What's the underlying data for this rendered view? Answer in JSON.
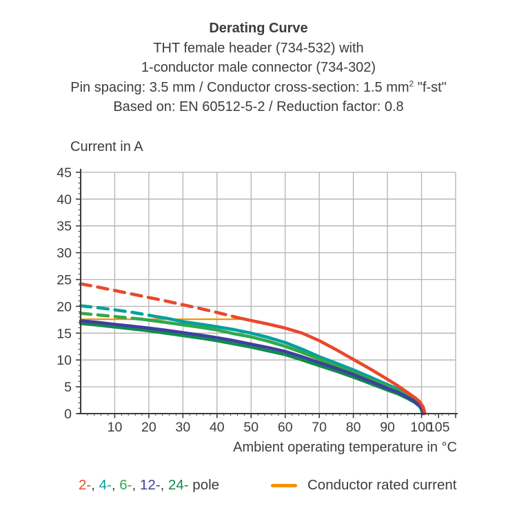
{
  "title": {
    "line1": "Derating Curve",
    "line2": "THT female header (734-532) with",
    "line3": "1-conductor male connector (734-302)",
    "line4_pre": "Pin spacing: 3.5 mm / Conductor cross-section: 1.5 mm",
    "line4_sup": "2",
    "line4_post": " \"f-st\"",
    "line5": "Based on: EN 60512-5-2 / Reduction factor: 0.8"
  },
  "chart_data": {
    "type": "line",
    "title": "Derating Curve",
    "xlabel": "Ambient operating temperature in °C",
    "ylabel": "Current in A",
    "xlim": [
      0,
      110
    ],
    "ylim": [
      0,
      45
    ],
    "grid": true,
    "x_tick_labels": [
      10,
      20,
      30,
      40,
      50,
      60,
      70,
      80,
      90,
      100,
      105
    ],
    "x_major_ticks": [
      10,
      20,
      30,
      40,
      50,
      60,
      70,
      80,
      90,
      100,
      105,
      110
    ],
    "x_minor_step": 2,
    "y_major_ticks": [
      0,
      5,
      10,
      15,
      20,
      25,
      30,
      35,
      40,
      45
    ],
    "y_minor_step": 1,
    "grid_color": "#b2b2b2",
    "axis_color": "#3c3c3b",
    "series": [
      {
        "name": "Conductor rated current",
        "color": "#f39200",
        "width": 2.2,
        "solid_points": [
          [
            0,
            17.6
          ],
          [
            46.5,
            17.6
          ]
        ]
      },
      {
        "name": "4-pole",
        "color": "#00a19d",
        "width": 4.6,
        "dashed_points": [
          [
            0,
            20.1
          ],
          [
            5,
            19.75
          ],
          [
            10,
            19.35
          ],
          [
            15,
            18.9
          ],
          [
            20,
            18.35
          ],
          [
            22,
            18.1
          ]
        ],
        "solid_points": [
          [
            22,
            18.1
          ],
          [
            25,
            17.8
          ],
          [
            30,
            17.15
          ],
          [
            35,
            16.7
          ],
          [
            40,
            16.2
          ],
          [
            45,
            15.65
          ],
          [
            50,
            15.0
          ],
          [
            55,
            14.2
          ],
          [
            60,
            13.25
          ],
          [
            65,
            12.0
          ],
          [
            70,
            10.6
          ],
          [
            75,
            9.4
          ],
          [
            80,
            8.15
          ],
          [
            85,
            6.8
          ],
          [
            90,
            5.4
          ],
          [
            93,
            4.6
          ],
          [
            96,
            3.5
          ],
          [
            98,
            2.7
          ],
          [
            99.5,
            1.8
          ],
          [
            100.3,
            0.9
          ],
          [
            100.6,
            0
          ]
        ]
      },
      {
        "name": "6-pole",
        "color": "#33a64c",
        "width": 4.6,
        "dashed_points": [
          [
            0,
            18.7
          ],
          [
            5,
            18.4
          ],
          [
            10,
            18.1
          ],
          [
            14,
            17.85
          ],
          [
            18,
            17.6
          ]
        ],
        "solid_points": [
          [
            18,
            17.6
          ],
          [
            25,
            17.0
          ],
          [
            30,
            16.55
          ],
          [
            35,
            16.1
          ],
          [
            40,
            15.6
          ],
          [
            45,
            14.9
          ],
          [
            50,
            14.3
          ],
          [
            55,
            13.5
          ],
          [
            60,
            12.55
          ],
          [
            65,
            11.4
          ],
          [
            70,
            10.15
          ],
          [
            75,
            8.9
          ],
          [
            80,
            7.7
          ],
          [
            85,
            6.4
          ],
          [
            90,
            5.1
          ],
          [
            93,
            4.3
          ],
          [
            96,
            3.3
          ],
          [
            98,
            2.5
          ],
          [
            99.5,
            1.6
          ],
          [
            100.2,
            0.8
          ],
          [
            100.5,
            0
          ]
        ]
      },
      {
        "name": "24-pole",
        "color": "#118b4b",
        "width": 4.6,
        "solid_points": [
          [
            0,
            16.8
          ],
          [
            5,
            16.5
          ],
          [
            10,
            16.15
          ],
          [
            15,
            15.8
          ],
          [
            20,
            15.45
          ],
          [
            25,
            15.0
          ],
          [
            30,
            14.55
          ],
          [
            35,
            14.1
          ],
          [
            40,
            13.6
          ],
          [
            45,
            13.0
          ],
          [
            50,
            12.4
          ],
          [
            55,
            11.7
          ],
          [
            60,
            11.0
          ],
          [
            65,
            10.0
          ],
          [
            70,
            8.95
          ],
          [
            75,
            7.9
          ],
          [
            80,
            6.8
          ],
          [
            85,
            5.6
          ],
          [
            90,
            4.4
          ],
          [
            93,
            3.7
          ],
          [
            96,
            2.8
          ],
          [
            98,
            2.1
          ],
          [
            99.5,
            1.3
          ],
          [
            100.1,
            0.6
          ],
          [
            100.3,
            0
          ]
        ]
      },
      {
        "name": "12-pole",
        "color": "#3f3f9f",
        "width": 4.6,
        "solid_points": [
          [
            0,
            17.3
          ],
          [
            5,
            17.0
          ],
          [
            10,
            16.65
          ],
          [
            15,
            16.3
          ],
          [
            20,
            15.95
          ],
          [
            25,
            15.55
          ],
          [
            30,
            15.1
          ],
          [
            35,
            14.65
          ],
          [
            40,
            14.15
          ],
          [
            45,
            13.6
          ],
          [
            50,
            12.95
          ],
          [
            55,
            12.3
          ],
          [
            60,
            11.6
          ],
          [
            65,
            10.6
          ],
          [
            70,
            9.5
          ],
          [
            75,
            8.4
          ],
          [
            80,
            7.3
          ],
          [
            85,
            6.0
          ],
          [
            90,
            4.7
          ],
          [
            93,
            4.0
          ],
          [
            96,
            3.0
          ],
          [
            98,
            2.3
          ],
          [
            99.5,
            1.5
          ],
          [
            100.2,
            0.7
          ],
          [
            100.4,
            0
          ]
        ]
      },
      {
        "name": "2-pole",
        "color": "#e8492b",
        "width": 4.6,
        "dashed_points": [
          [
            0,
            24.2
          ],
          [
            5,
            23.6
          ],
          [
            10,
            22.95
          ],
          [
            15,
            22.3
          ],
          [
            20,
            21.65
          ],
          [
            25,
            21.0
          ],
          [
            30,
            20.3
          ],
          [
            35,
            19.6
          ],
          [
            40,
            18.85
          ],
          [
            46,
            17.9
          ]
        ],
        "solid_points": [
          [
            46,
            17.9
          ],
          [
            50,
            17.35
          ],
          [
            55,
            16.7
          ],
          [
            60,
            15.95
          ],
          [
            65,
            15.0
          ],
          [
            70,
            13.6
          ],
          [
            75,
            11.9
          ],
          [
            80,
            10.1
          ],
          [
            85,
            8.3
          ],
          [
            90,
            6.4
          ],
          [
            93,
            5.2
          ],
          [
            96,
            3.9
          ],
          [
            98,
            3.0
          ],
          [
            99.5,
            2.2
          ],
          [
            100.5,
            1.2
          ],
          [
            101,
            0
          ]
        ]
      }
    ]
  },
  "legend": {
    "pole_parts": [
      {
        "text": "2-",
        "color": "#e8492b"
      },
      {
        "text": ", ",
        "color": "#3c3c3b"
      },
      {
        "text": "4-",
        "color": "#00a19d"
      },
      {
        "text": ", ",
        "color": "#3c3c3b"
      },
      {
        "text": "6-",
        "color": "#33a64c"
      },
      {
        "text": ", ",
        "color": "#3c3c3b"
      },
      {
        "text": "12-",
        "color": "#3f3f9f"
      },
      {
        "text": ", ",
        "color": "#3c3c3b"
      },
      {
        "text": "24-",
        "color": "#118b4b"
      },
      {
        "text": " pole",
        "color": "#3c3c3b"
      }
    ],
    "rated_label": "Conductor rated current",
    "rated_color": "#f39200"
  }
}
